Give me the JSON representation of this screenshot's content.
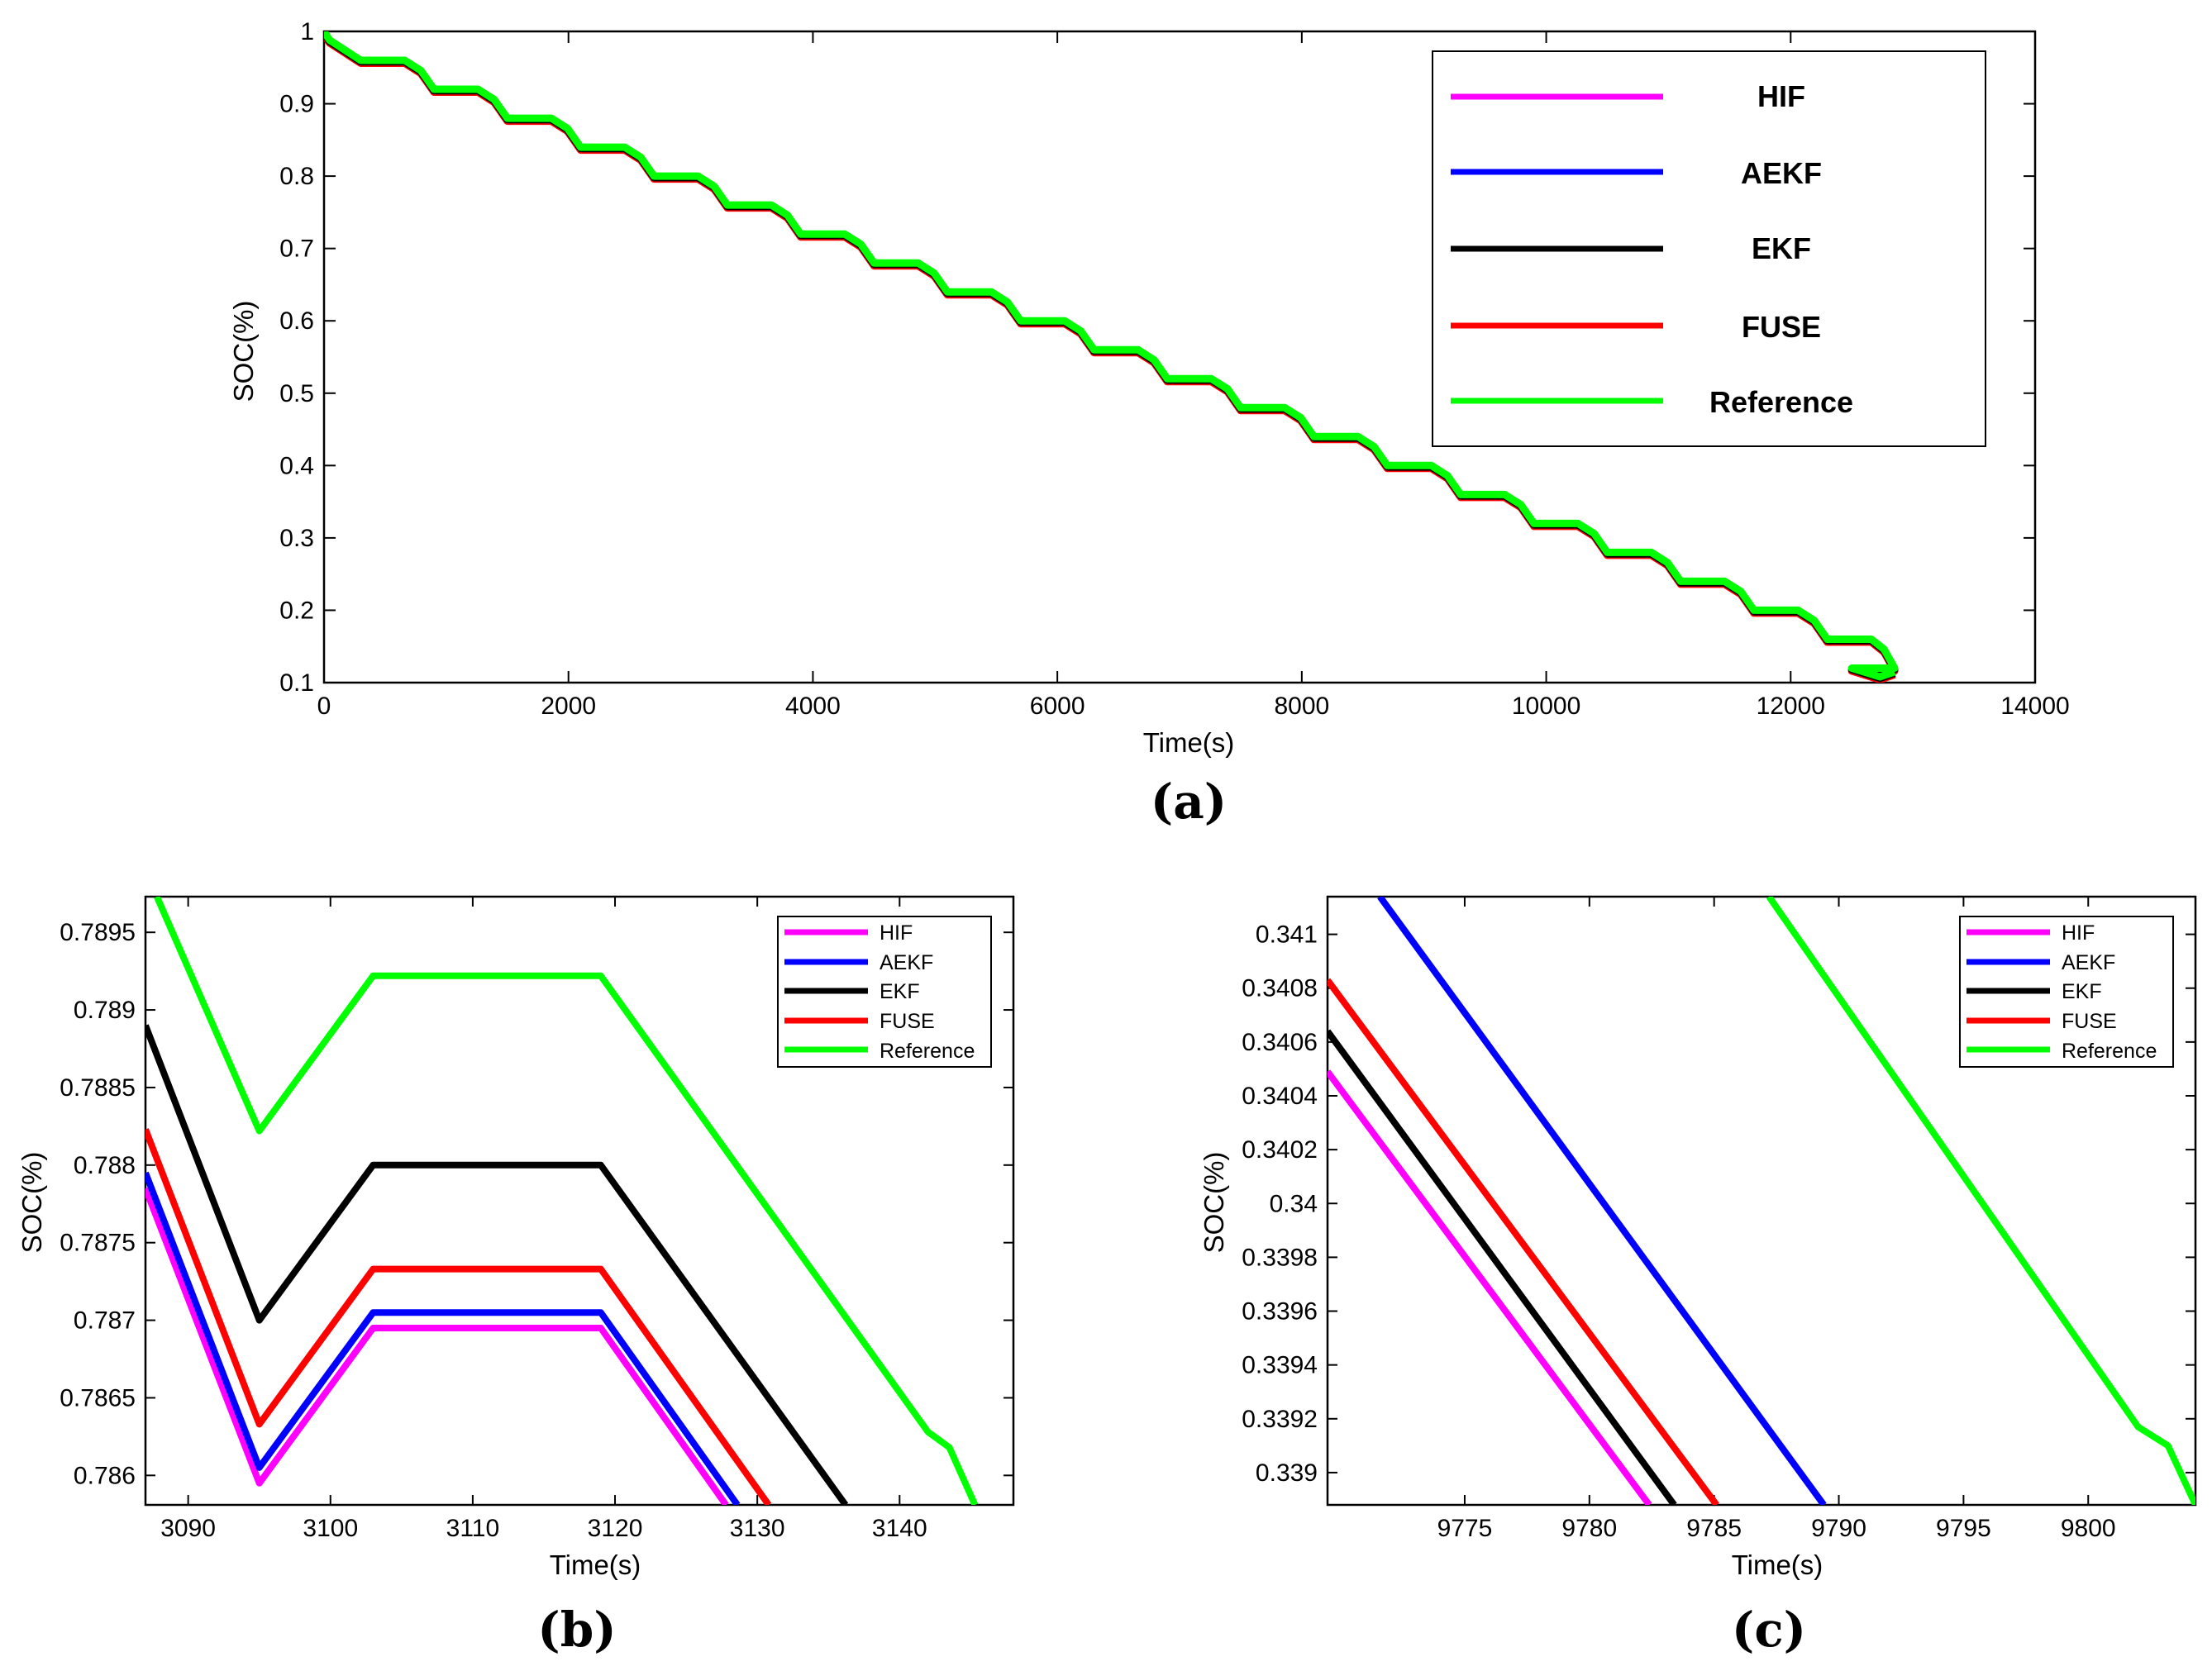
{
  "colors": {
    "HIF": "#ff00ff",
    "AEKF": "#0000ff",
    "EKF": "#000000",
    "FUSE": "#ff0000",
    "Reference": "#00ff00"
  },
  "chart_data": [
    {
      "id": "a",
      "type": "line",
      "caption": "(a)",
      "xlabel": "Time(s)",
      "ylabel": "SOC(%)",
      "xlim": [
        0,
        14000
      ],
      "ylim": [
        0.1,
        1
      ],
      "xticks": [
        0,
        2000,
        4000,
        6000,
        8000,
        10000,
        12000,
        14000
      ],
      "xtick_labels": [
        "0",
        "2000",
        "4000",
        "6000",
        "8000",
        "10000",
        "12000",
        "14000"
      ],
      "yticks": [
        0.1,
        0.2,
        0.3,
        0.4,
        0.5,
        0.6,
        0.7,
        0.8,
        0.9,
        1
      ],
      "ytick_labels": [
        "0.1",
        "0.2",
        "0.3",
        "0.4",
        "0.5",
        "0.6",
        "0.7",
        "0.8",
        "0.9",
        "1"
      ],
      "legend": [
        "HIF",
        "AEKF",
        "EKF",
        "FUSE",
        "Reference"
      ],
      "legend_position": "top-right",
      "profile": {
        "start": 1.0,
        "first_drop_time": 0,
        "first_drop_end": 0.96,
        "step_period": 600,
        "step_drop": 0.04,
        "rest_fraction": 0.45,
        "end_time": 12850,
        "end_value": 0.115
      },
      "series": [
        {
          "name": "FUSE",
          "offset": -0.004
        },
        {
          "name": "EKF",
          "offset": -0.002
        },
        {
          "name": "Reference",
          "offset": 0
        }
      ]
    },
    {
      "id": "b",
      "type": "line",
      "caption": "(b)",
      "xlabel": "Time(s)",
      "ylabel": "SOC(%)",
      "xlim": [
        3087,
        3148
      ],
      "ylim": [
        0.78581,
        0.78973
      ],
      "xticks": [
        3090,
        3100,
        3110,
        3120,
        3130,
        3140
      ],
      "xtick_labels": [
        "3090",
        "3100",
        "3110",
        "3120",
        "3130",
        "3140"
      ],
      "yticks": [
        0.786,
        0.7865,
        0.787,
        0.7875,
        0.788,
        0.7885,
        0.789,
        0.7895
      ],
      "ytick_labels": [
        "0.786",
        "0.7865",
        "0.787",
        "0.7875",
        "0.788",
        "0.7885",
        "0.789",
        "0.7895"
      ],
      "legend": [
        "HIF",
        "AEKF",
        "EKF",
        "FUSE",
        "Reference"
      ],
      "legend_position": "top-right",
      "series": [
        {
          "name": "HIF",
          "x": [
            3087,
            3095,
            3103,
            3119,
            3127.8
          ],
          "y": [
            0.78785,
            0.78595,
            0.78695,
            0.78695,
            0.78581
          ]
        },
        {
          "name": "AEKF",
          "x": [
            3087,
            3095,
            3103,
            3119,
            3128.6
          ],
          "y": [
            0.78795,
            0.78605,
            0.78705,
            0.78705,
            0.78581
          ]
        },
        {
          "name": "EKF",
          "x": [
            3087,
            3095,
            3103,
            3119,
            3136.2
          ],
          "y": [
            0.7889,
            0.787,
            0.788,
            0.788,
            0.78581
          ]
        },
        {
          "name": "FUSE",
          "x": [
            3087,
            3095,
            3103,
            3119,
            3130.8
          ],
          "y": [
            0.78823,
            0.78633,
            0.78733,
            0.78733,
            0.78581
          ]
        },
        {
          "name": "Reference",
          "x": [
            3087.8,
            3095,
            3103,
            3119,
            3142,
            3143.5,
            3145.3
          ],
          "y": [
            0.78973,
            0.78822,
            0.78922,
            0.78922,
            0.78628,
            0.78618,
            0.78581
          ]
        }
      ]
    },
    {
      "id": "c",
      "type": "line",
      "caption": "(c)",
      "xlabel": "Time(s)",
      "ylabel": "SOC(%)",
      "xlim": [
        9769.5,
        9804.3
      ],
      "ylim": [
        0.33888,
        0.34114
      ],
      "xticks": [
        9775,
        9780,
        9785,
        9790,
        9795,
        9800
      ],
      "xtick_labels": [
        "9775",
        "9780",
        "9785",
        "9790",
        "9795",
        "9800"
      ],
      "yticks": [
        0.339,
        0.3392,
        0.3394,
        0.3396,
        0.3398,
        0.34,
        0.3402,
        0.3404,
        0.3406,
        0.3408,
        0.341
      ],
      "ytick_labels": [
        "0.339",
        "0.3392",
        "0.3394",
        "0.3396",
        "0.3398",
        "0.34",
        "0.3402",
        "0.3404",
        "0.3406",
        "0.3408",
        "0.341"
      ],
      "legend": [
        "HIF",
        "AEKF",
        "EKF",
        "FUSE",
        "Reference"
      ],
      "legend_position": "top-right",
      "series": [
        {
          "name": "HIF",
          "x": [
            9769.5,
            9782.4
          ],
          "y": [
            0.34049,
            0.33888
          ]
        },
        {
          "name": "AEKF",
          "x": [
            9771.6,
            9789.4
          ],
          "y": [
            0.34114,
            0.33888
          ]
        },
        {
          "name": "EKF",
          "x": [
            9769.5,
            9783.4
          ],
          "y": [
            0.34064,
            0.33888
          ]
        },
        {
          "name": "FUSE",
          "x": [
            9769.5,
            9785.1
          ],
          "y": [
            0.34083,
            0.33888
          ]
        },
        {
          "name": "Reference",
          "x": [
            9787.2,
            9802.0,
            9803.2,
            9804.3
          ],
          "y": [
            0.34114,
            0.33917,
            0.3391,
            0.33888
          ]
        }
      ]
    }
  ]
}
